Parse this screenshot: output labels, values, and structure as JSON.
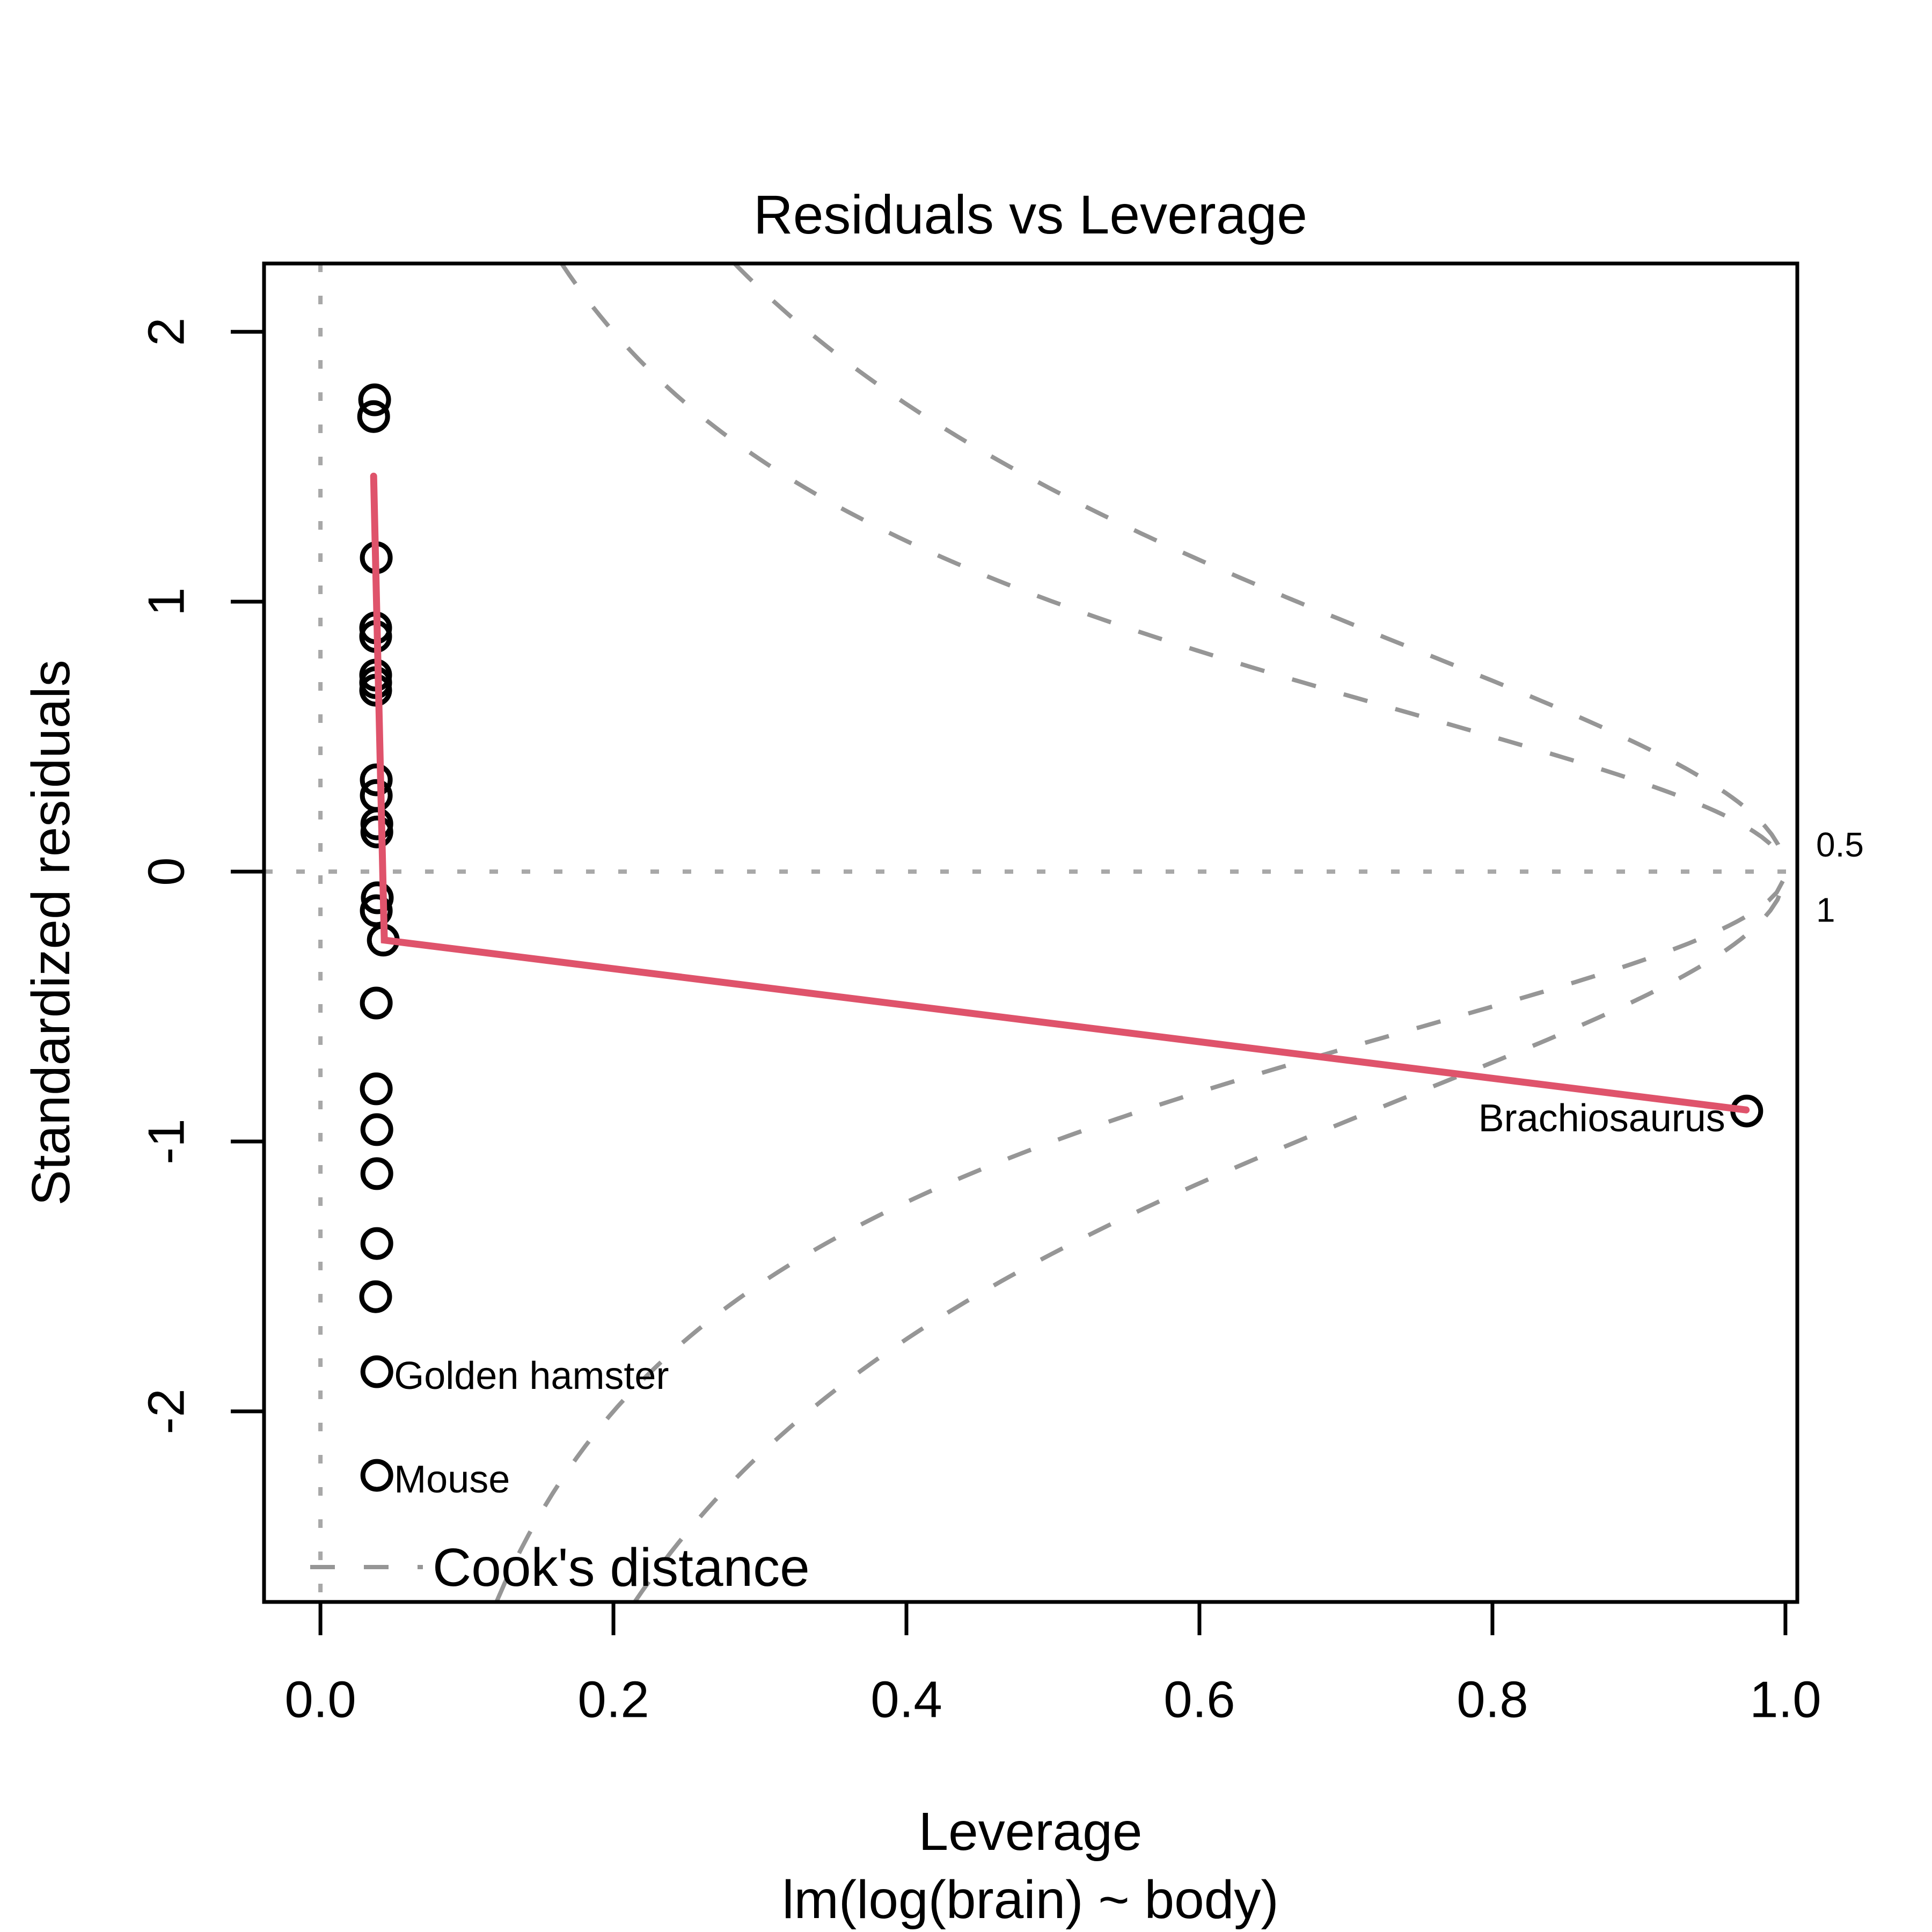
{
  "chart_data": {
    "type": "scatter",
    "title": "Residuals vs Leverage",
    "xlabel": "Leverage",
    "model_label": "lm(log(brain) ~ body)",
    "ylabel": "Standardized residuals",
    "xlim": [
      -0.0385,
      1.0081
    ],
    "ylim": [
      -2.706,
      2.253
    ],
    "x_ticks": [
      {
        "v": 0.0,
        "label": "0.0"
      },
      {
        "v": 0.2,
        "label": "0.2"
      },
      {
        "v": 0.4,
        "label": "0.4"
      },
      {
        "v": 0.6,
        "label": "0.6"
      },
      {
        "v": 0.8,
        "label": "0.8"
      },
      {
        "v": 1.0,
        "label": "1.0"
      }
    ],
    "y_ticks": [
      {
        "v": -2,
        "label": "-2"
      },
      {
        "v": -1,
        "label": "-1"
      },
      {
        "v": 0,
        "label": "0"
      },
      {
        "v": 1,
        "label": "1"
      },
      {
        "v": 2,
        "label": "2"
      }
    ],
    "ref_lines": {
      "vertical_at_leverage": 0,
      "horizontal_at_residual": 0
    },
    "points": [
      [
        0.037,
        1.748
      ],
      [
        0.0363,
        1.686
      ],
      [
        0.0381,
        1.163
      ],
      [
        0.0377,
        0.903
      ],
      [
        0.0377,
        0.871
      ],
      [
        0.0377,
        0.728
      ],
      [
        0.0377,
        0.7
      ],
      [
        0.0377,
        0.672
      ],
      [
        0.0381,
        0.34
      ],
      [
        0.0381,
        0.282
      ],
      [
        0.0385,
        0.177
      ],
      [
        0.0385,
        0.147
      ],
      [
        0.0388,
        -0.097
      ],
      [
        0.0381,
        -0.145
      ],
      [
        0.0429,
        -0.254
      ],
      [
        0.0381,
        -0.487
      ],
      [
        0.0381,
        -0.805
      ],
      [
        0.0385,
        -0.956
      ],
      [
        0.0385,
        -1.119
      ],
      [
        0.0385,
        -1.378
      ],
      [
        0.0377,
        -1.575
      ]
    ],
    "labeled_points": [
      {
        "name": "Brachiosaurus",
        "h": 0.9736,
        "r": -0.887,
        "side": "left-of"
      },
      {
        "name": "Golden hamster",
        "h": 0.0385,
        "r": -1.853,
        "side": "right-of"
      },
      {
        "name": "Mouse",
        "h": 0.0385,
        "r": -2.237,
        "side": "right-of"
      }
    ],
    "smooth_line": [
      [
        0.0363,
        1.465
      ],
      [
        0.0436,
        -0.254
      ],
      [
        0.9732,
        -0.883
      ]
    ],
    "cook": {
      "p": 2,
      "levels": [
        0.5,
        1
      ],
      "legend": "Cook's distance",
      "axis_labels": [
        {
          "text": "0.5",
          "at": 0.1
        },
        {
          "text": "1",
          "at": -0.142
        }
      ]
    },
    "colors": {
      "smooth_line": "#DF536B",
      "cook_gray": "#969696",
      "dotted_ref": "#a8a8a8",
      "points": "#000000"
    }
  }
}
